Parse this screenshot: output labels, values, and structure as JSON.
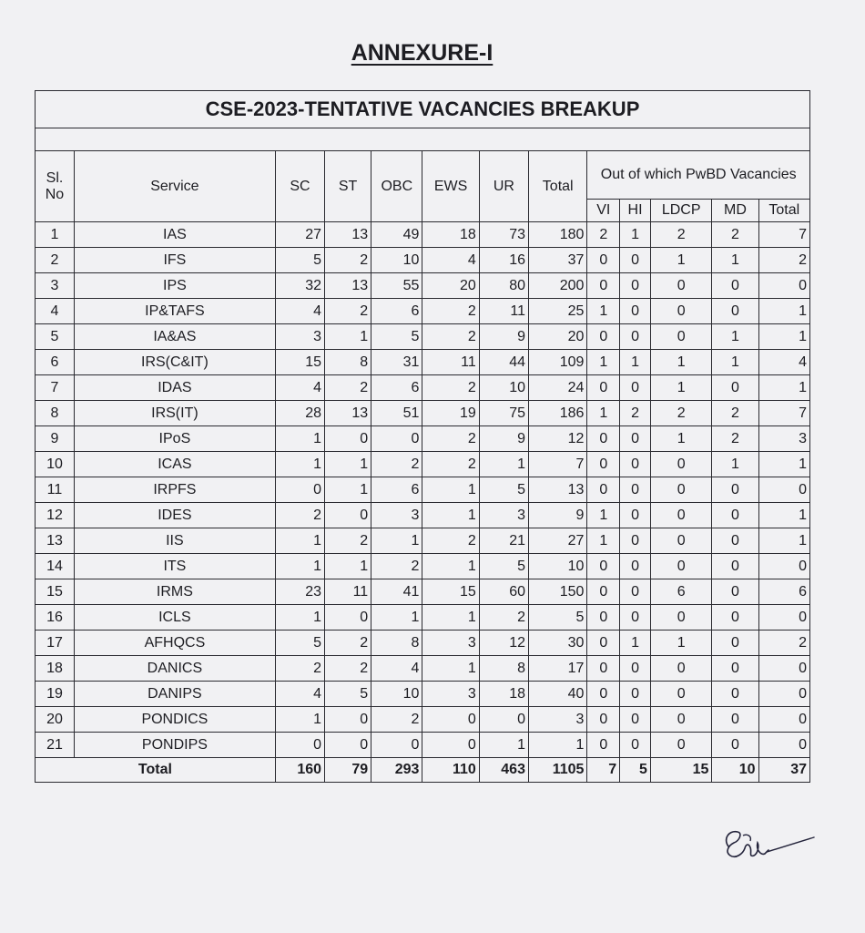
{
  "annexure_title": "ANNEXURE-I",
  "table_title": "CSE-2023-TENTATIVE VACANCIES BREAKUP",
  "headers": {
    "sl_no": "Sl. No",
    "service": "Service",
    "sc": "SC",
    "st": "ST",
    "obc": "OBC",
    "ews": "EWS",
    "ur": "UR",
    "total": "Total",
    "pwbd_group": "Out of which PwBD Vacancies",
    "vi": "VI",
    "hi": "HI",
    "ldcp": "LDCP",
    "md": "MD",
    "pwbd_total": "Total"
  },
  "rows": [
    {
      "sl": "1",
      "service": "IAS",
      "sc": "27",
      "st": "13",
      "obc": "49",
      "ews": "18",
      "ur": "73",
      "total": "180",
      "vi": "2",
      "hi": "1",
      "ldcp": "2",
      "md": "2",
      "ptotal": "7"
    },
    {
      "sl": "2",
      "service": "IFS",
      "sc": "5",
      "st": "2",
      "obc": "10",
      "ews": "4",
      "ur": "16",
      "total": "37",
      "vi": "0",
      "hi": "0",
      "ldcp": "1",
      "md": "1",
      "ptotal": "2"
    },
    {
      "sl": "3",
      "service": "IPS",
      "sc": "32",
      "st": "13",
      "obc": "55",
      "ews": "20",
      "ur": "80",
      "total": "200",
      "vi": "0",
      "hi": "0",
      "ldcp": "0",
      "md": "0",
      "ptotal": "0"
    },
    {
      "sl": "4",
      "service": "IP&TAFS",
      "sc": "4",
      "st": "2",
      "obc": "6",
      "ews": "2",
      "ur": "11",
      "total": "25",
      "vi": "1",
      "hi": "0",
      "ldcp": "0",
      "md": "0",
      "ptotal": "1"
    },
    {
      "sl": "5",
      "service": "IA&AS",
      "sc": "3",
      "st": "1",
      "obc": "5",
      "ews": "2",
      "ur": "9",
      "total": "20",
      "vi": "0",
      "hi": "0",
      "ldcp": "0",
      "md": "1",
      "ptotal": "1"
    },
    {
      "sl": "6",
      "service": "IRS(C&IT)",
      "sc": "15",
      "st": "8",
      "obc": "31",
      "ews": "11",
      "ur": "44",
      "total": "109",
      "vi": "1",
      "hi": "1",
      "ldcp": "1",
      "md": "1",
      "ptotal": "4"
    },
    {
      "sl": "7",
      "service": "IDAS",
      "sc": "4",
      "st": "2",
      "obc": "6",
      "ews": "2",
      "ur": "10",
      "total": "24",
      "vi": "0",
      "hi": "0",
      "ldcp": "1",
      "md": "0",
      "ptotal": "1"
    },
    {
      "sl": "8",
      "service": "IRS(IT)",
      "sc": "28",
      "st": "13",
      "obc": "51",
      "ews": "19",
      "ur": "75",
      "total": "186",
      "vi": "1",
      "hi": "2",
      "ldcp": "2",
      "md": "2",
      "ptotal": "7"
    },
    {
      "sl": "9",
      "service": "IPoS",
      "sc": "1",
      "st": "0",
      "obc": "0",
      "ews": "2",
      "ur": "9",
      "total": "12",
      "vi": "0",
      "hi": "0",
      "ldcp": "1",
      "md": "2",
      "ptotal": "3"
    },
    {
      "sl": "10",
      "service": "ICAS",
      "sc": "1",
      "st": "1",
      "obc": "2",
      "ews": "2",
      "ur": "1",
      "total": "7",
      "vi": "0",
      "hi": "0",
      "ldcp": "0",
      "md": "1",
      "ptotal": "1"
    },
    {
      "sl": "11",
      "service": "IRPFS",
      "sc": "0",
      "st": "1",
      "obc": "6",
      "ews": "1",
      "ur": "5",
      "total": "13",
      "vi": "0",
      "hi": "0",
      "ldcp": "0",
      "md": "0",
      "ptotal": "0"
    },
    {
      "sl": "12",
      "service": "IDES",
      "sc": "2",
      "st": "0",
      "obc": "3",
      "ews": "1",
      "ur": "3",
      "total": "9",
      "vi": "1",
      "hi": "0",
      "ldcp": "0",
      "md": "0",
      "ptotal": "1"
    },
    {
      "sl": "13",
      "service": "IIS",
      "sc": "1",
      "st": "2",
      "obc": "1",
      "ews": "2",
      "ur": "21",
      "total": "27",
      "vi": "1",
      "hi": "0",
      "ldcp": "0",
      "md": "0",
      "ptotal": "1"
    },
    {
      "sl": "14",
      "service": "ITS",
      "sc": "1",
      "st": "1",
      "obc": "2",
      "ews": "1",
      "ur": "5",
      "total": "10",
      "vi": "0",
      "hi": "0",
      "ldcp": "0",
      "md": "0",
      "ptotal": "0"
    },
    {
      "sl": "15",
      "service": "IRMS",
      "sc": "23",
      "st": "11",
      "obc": "41",
      "ews": "15",
      "ur": "60",
      "total": "150",
      "vi": "0",
      "hi": "0",
      "ldcp": "6",
      "md": "0",
      "ptotal": "6"
    },
    {
      "sl": "16",
      "service": "ICLS",
      "sc": "1",
      "st": "0",
      "obc": "1",
      "ews": "1",
      "ur": "2",
      "total": "5",
      "vi": "0",
      "hi": "0",
      "ldcp": "0",
      "md": "0",
      "ptotal": "0"
    },
    {
      "sl": "17",
      "service": "AFHQCS",
      "sc": "5",
      "st": "2",
      "obc": "8",
      "ews": "3",
      "ur": "12",
      "total": "30",
      "vi": "0",
      "hi": "1",
      "ldcp": "1",
      "md": "0",
      "ptotal": "2"
    },
    {
      "sl": "18",
      "service": "DANICS",
      "sc": "2",
      "st": "2",
      "obc": "4",
      "ews": "1",
      "ur": "8",
      "total": "17",
      "vi": "0",
      "hi": "0",
      "ldcp": "0",
      "md": "0",
      "ptotal": "0"
    },
    {
      "sl": "19",
      "service": "DANIPS",
      "sc": "4",
      "st": "5",
      "obc": "10",
      "ews": "3",
      "ur": "18",
      "total": "40",
      "vi": "0",
      "hi": "0",
      "ldcp": "0",
      "md": "0",
      "ptotal": "0"
    },
    {
      "sl": "20",
      "service": "PONDICS",
      "sc": "1",
      "st": "0",
      "obc": "2",
      "ews": "0",
      "ur": "0",
      "total": "3",
      "vi": "0",
      "hi": "0",
      "ldcp": "0",
      "md": "0",
      "ptotal": "0"
    },
    {
      "sl": "21",
      "service": "PONDIPS",
      "sc": "0",
      "st": "0",
      "obc": "0",
      "ews": "0",
      "ur": "1",
      "total": "1",
      "vi": "0",
      "hi": "0",
      "ldcp": "0",
      "md": "0",
      "ptotal": "0"
    }
  ],
  "totals": {
    "label": "Total",
    "sc": "160",
    "st": "79",
    "obc": "293",
    "ews": "110",
    "ur": "463",
    "total": "1105",
    "vi": "7",
    "hi": "5",
    "ldcp": "15",
    "md": "10",
    "ptotal": "37"
  }
}
